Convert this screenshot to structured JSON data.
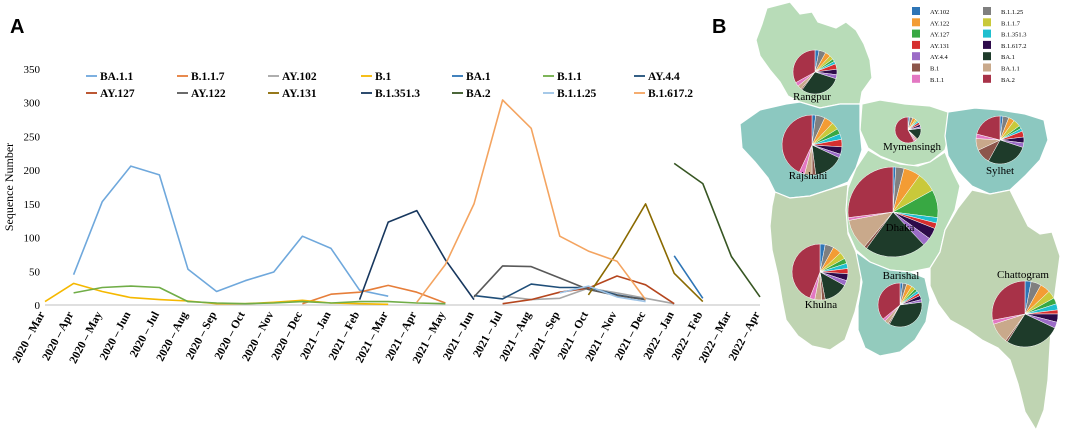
{
  "panel_a": {
    "letter": "A",
    "chart_data": {
      "type": "line",
      "ylabel": "Sequence Number",
      "xlabel": "",
      "ylim": [
        0,
        350
      ],
      "yticks": [
        0,
        50,
        100,
        150,
        200,
        250,
        300,
        350
      ],
      "categories": [
        "2020 – Mar",
        "2020 – Apr",
        "2020 – May",
        "2020 – Jun",
        "2020 – Jul",
        "2020 – Aug",
        "2020 – Sep",
        "2020 – Oct",
        "2020 – Nov",
        "2020 – Dec",
        "2021 – Jan",
        "2021 – Feb",
        "2021 – Mar",
        "2021 – Apr",
        "2021 – May",
        "2021 – Jun",
        "2021 – Jul",
        "2021 – Aug",
        "2021 – Sep",
        "2021 – Oct",
        "2021 – Nov",
        "2021 – Dec",
        "2022 – Jan",
        "2022 – Feb",
        "2022 – Mar",
        "2022 – Apr"
      ],
      "series": [
        {
          "name": "BA.1.1",
          "color": "#6fa8dc",
          "values": [
            null,
            45,
            153,
            206,
            193,
            53,
            20,
            36,
            49,
            102,
            84,
            22,
            13,
            null,
            null,
            null,
            null,
            null,
            null,
            null,
            null,
            null,
            null,
            null,
            null,
            null
          ]
        },
        {
          "name": "B.1.1.7",
          "color": "#e67e3a",
          "values": [
            null,
            null,
            null,
            null,
            null,
            null,
            null,
            null,
            null,
            2,
            16,
            19,
            29,
            19,
            3,
            null,
            null,
            null,
            null,
            null,
            null,
            null,
            null,
            null,
            null,
            null
          ]
        },
        {
          "name": "AY.102",
          "color": "#a6a6a6",
          "values": [
            null,
            null,
            null,
            null,
            null,
            null,
            null,
            null,
            null,
            null,
            null,
            null,
            null,
            null,
            null,
            null,
            13,
            8,
            10,
            25,
            18,
            10,
            2,
            null,
            null,
            null
          ]
        },
        {
          "name": "B.1",
          "color": "#f5b800",
          "values": [
            5,
            32,
            20,
            11,
            8,
            6,
            2,
            2,
            4,
            7,
            3,
            2,
            1,
            null,
            null,
            null,
            null,
            null,
            null,
            null,
            null,
            null,
            null,
            null,
            null,
            null
          ]
        },
        {
          "name": "BA.1",
          "color": "#2e75b6",
          "values": [
            null,
            null,
            null,
            null,
            null,
            null,
            null,
            null,
            null,
            null,
            null,
            null,
            null,
            null,
            null,
            null,
            null,
            null,
            null,
            null,
            null,
            null,
            73,
            10,
            null,
            null
          ]
        },
        {
          "name": "B.1.1",
          "color": "#70ad47",
          "values": [
            null,
            18,
            26,
            28,
            26,
            5,
            3,
            2,
            3,
            5,
            3,
            5,
            5,
            3,
            2,
            null,
            null,
            null,
            null,
            null,
            null,
            null,
            null,
            null,
            null,
            null
          ]
        },
        {
          "name": "AY.4.4",
          "color": "#1f4e79",
          "values": [
            null,
            null,
            null,
            null,
            null,
            null,
            null,
            null,
            null,
            null,
            null,
            null,
            null,
            null,
            null,
            14,
            9,
            31,
            26,
            26,
            15,
            8,
            null,
            null,
            null,
            null
          ]
        },
        {
          "name": "AY.127",
          "color": "#b5461e",
          "values": [
            null,
            null,
            null,
            null,
            null,
            null,
            null,
            null,
            null,
            null,
            null,
            null,
            null,
            null,
            null,
            null,
            2,
            8,
            19,
            25,
            43,
            30,
            2,
            null,
            null,
            null
          ]
        },
        {
          "name": "AY.122",
          "color": "#595959",
          "values": [
            null,
            null,
            null,
            null,
            null,
            null,
            null,
            null,
            null,
            null,
            null,
            null,
            null,
            null,
            null,
            12,
            58,
            57,
            40,
            23,
            14,
            8,
            null,
            null,
            null,
            null
          ]
        },
        {
          "name": "AY.131",
          "color": "#8a6a00",
          "values": [
            null,
            null,
            null,
            null,
            null,
            null,
            null,
            null,
            null,
            null,
            null,
            null,
            null,
            null,
            null,
            null,
            null,
            null,
            null,
            15,
            78,
            150,
            47,
            5,
            null,
            null
          ]
        },
        {
          "name": "B.1.351.3",
          "color": "#17375e",
          "values": [
            null,
            null,
            null,
            null,
            null,
            null,
            null,
            null,
            null,
            null,
            null,
            8,
            123,
            140,
            67,
            8,
            null,
            null,
            null,
            null,
            null,
            null,
            null,
            null,
            null,
            null
          ]
        },
        {
          "name": "BA.2",
          "color": "#375623",
          "values": [
            null,
            null,
            null,
            null,
            null,
            null,
            null,
            null,
            null,
            null,
            null,
            null,
            null,
            null,
            null,
            null,
            null,
            null,
            null,
            null,
            null,
            null,
            210,
            180,
            72,
            12
          ]
        },
        {
          "name": "B.1.1.25",
          "color": "#9dc3e6",
          "values": [
            null,
            null,
            null,
            null,
            null,
            null,
            null,
            null,
            null,
            null,
            null,
            null,
            null,
            null,
            null,
            null,
            null,
            null,
            18,
            28,
            12,
            5,
            null,
            null,
            null,
            null
          ]
        },
        {
          "name": "B.1.617.2",
          "color": "#f4a460",
          "values": [
            null,
            null,
            null,
            null,
            null,
            null,
            null,
            null,
            null,
            null,
            null,
            null,
            null,
            4,
            60,
            150,
            304,
            262,
            102,
            80,
            65,
            8,
            null,
            null,
            null,
            null
          ]
        }
      ]
    }
  },
  "panel_b": {
    "letter": "B",
    "legend": [
      {
        "name": "AY.102",
        "color": "#2e75b6"
      },
      {
        "name": "B.1.1.25",
        "color": "#7f7f7f"
      },
      {
        "name": "AY.122",
        "color": "#f39c34"
      },
      {
        "name": "B.1.1.7",
        "color": "#c9c93a"
      },
      {
        "name": "AY.127",
        "color": "#38a843"
      },
      {
        "name": "B.1.351.3",
        "color": "#1fbfcf"
      },
      {
        "name": "AY.131",
        "color": "#d62f2f"
      },
      {
        "name": "B.1.617.2",
        "color": "#2d0b4a"
      },
      {
        "name": "AY.4.4",
        "color": "#9b6bc7"
      },
      {
        "name": "BA.1",
        "color": "#1e3b2a"
      },
      {
        "name": "B.1",
        "color": "#8c564b"
      },
      {
        "name": "BA.1.1",
        "color": "#c9a98b"
      },
      {
        "name": "B.1.1",
        "color": "#e377c2"
      },
      {
        "name": "BA.2",
        "color": "#a83248"
      }
    ],
    "divisions": [
      {
        "name": "Rangpur",
        "slices": [
          3,
          5,
          4,
          3,
          2,
          2,
          4,
          4,
          3,
          30,
          1,
          3,
          3,
          33
        ]
      },
      {
        "name": "Mymensingh",
        "slices": [
          2,
          4,
          4,
          2,
          1,
          2,
          3,
          3,
          2,
          14,
          1,
          2,
          2,
          58
        ]
      },
      {
        "name": "Sylhet",
        "slices": [
          2,
          4,
          4,
          5,
          2,
          2,
          4,
          4,
          3,
          28,
          10,
          8,
          3,
          21
        ]
      },
      {
        "name": "Rajshahi",
        "slices": [
          2,
          5,
          5,
          4,
          3,
          3,
          4,
          4,
          2,
          16,
          2,
          4,
          3,
          43
        ]
      },
      {
        "name": "Dhaka",
        "slices": [
          1,
          3,
          6,
          7,
          10,
          2,
          2,
          4,
          3,
          22,
          1,
          11,
          1,
          27
        ]
      },
      {
        "name": "Khulna",
        "slices": [
          3,
          5,
          5,
          4,
          3,
          3,
          3,
          4,
          3,
          14,
          2,
          4,
          3,
          44
        ]
      },
      {
        "name": "Barishal",
        "slices": [
          2,
          3,
          4,
          3,
          2,
          2,
          2,
          3,
          2,
          35,
          1,
          3,
          2,
          36
        ]
      },
      {
        "name": "Chattogram",
        "slices": [
          3,
          5,
          5,
          4,
          3,
          3,
          2,
          4,
          3,
          27,
          1,
          10,
          2,
          28
        ]
      }
    ]
  }
}
